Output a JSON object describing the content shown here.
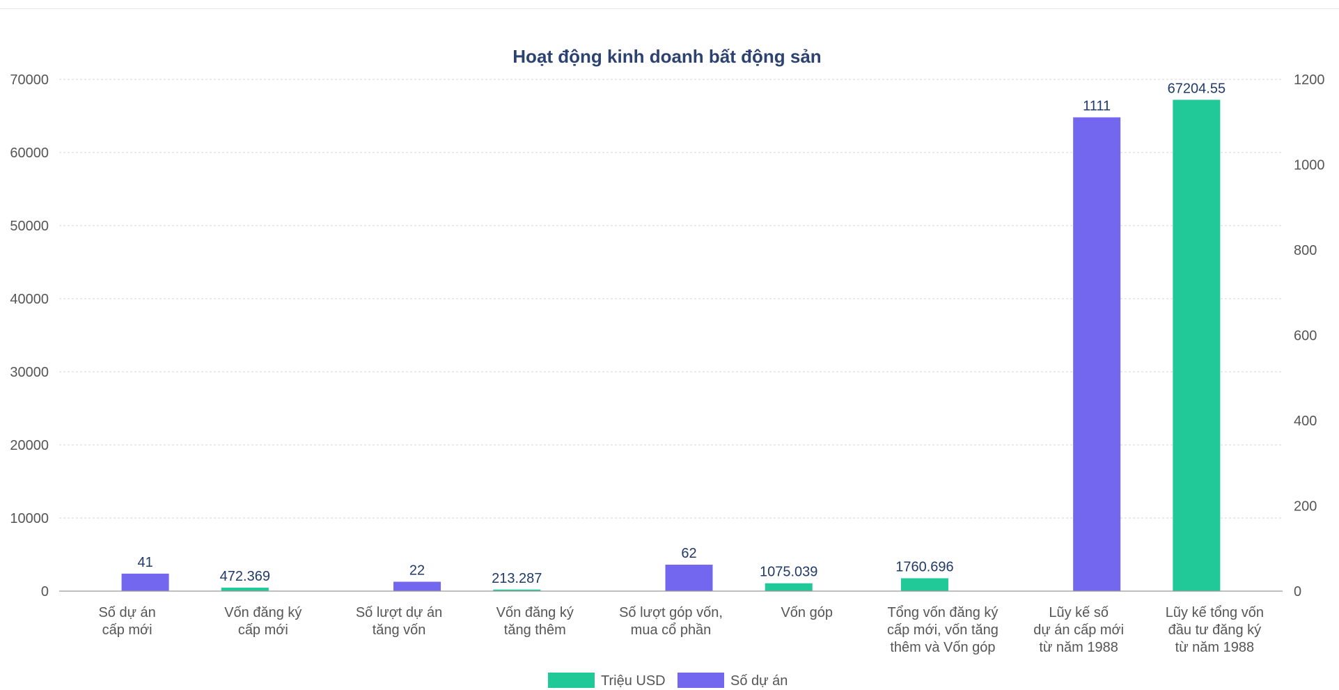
{
  "chart_data": {
    "type": "bar",
    "title": "Hoạt động kinh doanh bất động sản",
    "categories": [
      [
        "Số dự án",
        "cấp mới"
      ],
      [
        "Vốn đăng ký",
        "cấp mới"
      ],
      [
        "Số lượt dự án",
        "tăng vốn"
      ],
      [
        "Vốn đăng ký",
        "tăng thêm"
      ],
      [
        "Số lượt góp vốn,",
        "mua cổ phần"
      ],
      [
        "Vốn góp"
      ],
      [
        "Tổng vốn đăng ký",
        "cấp mới, vốn tăng",
        "thêm và Vốn góp"
      ],
      [
        "Lũy kế số",
        "dự án cấp mới",
        "từ năm 1988"
      ],
      [
        "Lũy kế tổng vốn",
        "đầu tư đăng ký",
        "từ năm 1988"
      ]
    ],
    "series": [
      {
        "name": "Triệu USD",
        "axis": "left",
        "color": "#20c997",
        "values": [
          null,
          472.369,
          null,
          213.287,
          null,
          1075.039,
          1760.696,
          null,
          67204.55
        ],
        "labels": [
          "",
          "472.369",
          "",
          "213.287",
          "",
          "1075.039",
          "1760.696",
          "",
          "67204.55"
        ]
      },
      {
        "name": "Số dự án",
        "axis": "right",
        "color": "#7367f0",
        "values": [
          41,
          null,
          22,
          null,
          62,
          null,
          null,
          1111,
          null
        ],
        "labels": [
          "41",
          "",
          "22",
          "",
          "62",
          "",
          "",
          "1111",
          ""
        ]
      }
    ],
    "y_left": {
      "min": 0,
      "max": 70000,
      "ticks": [
        "0",
        "10000",
        "20000",
        "30000",
        "40000",
        "50000",
        "60000",
        "70000"
      ]
    },
    "y_right": {
      "min": 0,
      "max": 1200,
      "ticks": [
        "0",
        "200",
        "400",
        "600",
        "800",
        "1000",
        "1200"
      ]
    },
    "grid": true,
    "legend_position": "bottom"
  }
}
